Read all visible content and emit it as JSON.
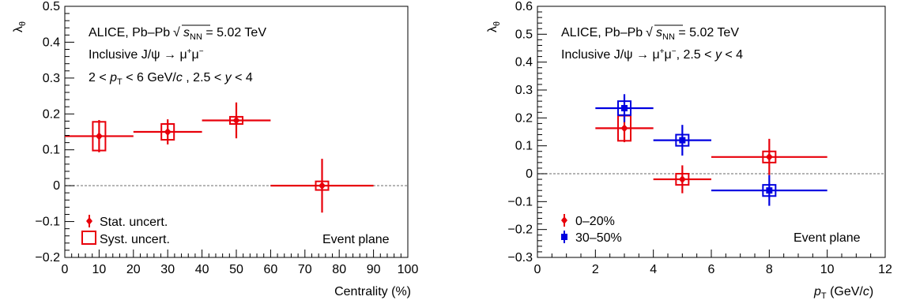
{
  "chart_data": [
    {
      "type": "scatter",
      "xlabel": "Centrality (%)",
      "ylabel": "λθ",
      "xlim": [
        0,
        100
      ],
      "ylim": [
        -0.2,
        0.5
      ],
      "xticks": [
        "0",
        "10",
        "20",
        "30",
        "40",
        "50",
        "60",
        "70",
        "80",
        "90",
        "100"
      ],
      "yticks": [
        "−0.2",
        "−0.1",
        "0",
        "0.1",
        "0.2",
        "0.3",
        "0.4",
        "0.5"
      ],
      "annotations": [
        "ALICE, Pb–Pb √sNN = 5.02 TeV",
        "Inclusive J/ψ → μ+μ−",
        "2 < pT < 6 GeV/c , 2.5 < y < 4",
        "Event plane"
      ],
      "legend": {
        "placement": "bottom-left",
        "entries": [
          "Stat. uncert.",
          "Syst. uncert."
        ]
      },
      "reference_line": 0,
      "series": [
        {
          "color": "#e8000b",
          "points": [
            {
              "x": 10,
              "x_lo": 0,
              "x_hi": 20,
              "y": 0.138,
              "stat": 0.045,
              "syst": 0.04
            },
            {
              "x": 30,
              "x_lo": 20,
              "x_hi": 40,
              "y": 0.15,
              "stat": 0.035,
              "syst": 0.022
            },
            {
              "x": 50,
              "x_lo": 40,
              "x_hi": 60,
              "y": 0.182,
              "stat": 0.05,
              "syst": 0.01
            },
            {
              "x": 75,
              "x_lo": 60,
              "x_hi": 90,
              "y": 0.0,
              "stat": 0.075,
              "syst": 0.012
            }
          ]
        }
      ]
    },
    {
      "type": "scatter",
      "xlabel": "pT (GeV/c)",
      "ylabel": "λθ",
      "xlim": [
        0,
        12
      ],
      "ylim": [
        -0.3,
        0.6
      ],
      "xticks": [
        "0",
        "2",
        "4",
        "6",
        "8",
        "10",
        "12"
      ],
      "yticks": [
        "−0.3",
        "−0.2",
        "−0.1",
        "0",
        "0.1",
        "0.2",
        "0.3",
        "0.4",
        "0.5",
        "0.6"
      ],
      "annotations": [
        "ALICE, Pb–Pb √sNN = 5.02 TeV",
        "Inclusive J/ψ → μ+μ−, 2.5 < y < 4",
        "Event plane"
      ],
      "legend": {
        "placement": "bottom-left"
      },
      "reference_line": 0,
      "series": [
        {
          "name": "0–20%",
          "color": "#e8000b",
          "marker": "diamond",
          "points": [
            {
              "x": 3,
              "x_lo": 2,
              "x_hi": 4,
              "y": 0.163,
              "stat": 0.05,
              "syst": 0.045
            },
            {
              "x": 5,
              "x_lo": 4,
              "x_hi": 6,
              "y": -0.02,
              "stat": 0.05,
              "syst": 0.02
            },
            {
              "x": 8,
              "x_lo": 6,
              "x_hi": 10,
              "y": 0.06,
              "stat": 0.065,
              "syst": 0.02
            }
          ]
        },
        {
          "name": "30–50%",
          "color": "#0000e0",
          "marker": "square",
          "points": [
            {
              "x": 3,
              "x_lo": 2,
              "x_hi": 4,
              "y": 0.235,
              "stat": 0.05,
              "syst": 0.025
            },
            {
              "x": 5,
              "x_lo": 4,
              "x_hi": 6,
              "y": 0.12,
              "stat": 0.055,
              "syst": 0.02
            },
            {
              "x": 8,
              "x_lo": 6,
              "x_hi": 10,
              "y": -0.06,
              "stat": 0.055,
              "syst": 0.02
            }
          ]
        }
      ]
    }
  ]
}
